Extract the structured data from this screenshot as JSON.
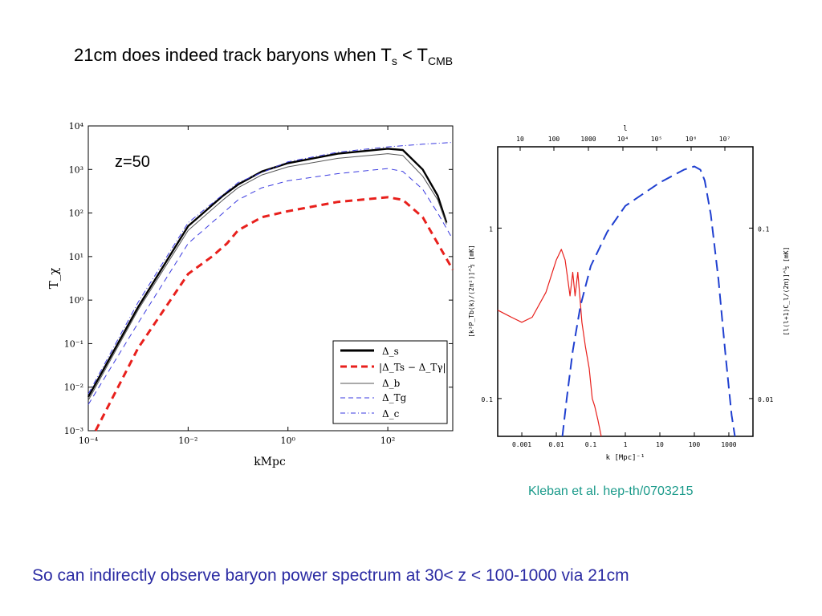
{
  "slide": {
    "title_main": "21cm does indeed track baryons when T",
    "title_sub1": "s",
    "title_mid": " < T",
    "title_sub2": "CMB",
    "caption": "So can indirectly observe baryon power spectrum at 30< z < 100-1000 via 21cm",
    "citation": "Kleban et al. hep-th/0703215"
  },
  "chart_data": [
    {
      "type": "line",
      "annotation": "z=50",
      "xlabel": "kMpc",
      "ylabel": "T_χ",
      "xscale": "log",
      "yscale": "log",
      "xlim": [
        0.0001,
        2000
      ],
      "ylim": [
        0.001,
        10000
      ],
      "x_ticks": [
        "10⁻⁴",
        "10⁻²",
        "10⁰",
        "10²"
      ],
      "y_ticks": [
        "10⁴",
        "10³",
        "10²",
        "10¹",
        "10⁰",
        "10⁻¹",
        "10⁻²",
        "10⁻³"
      ],
      "legend_position": "bottom-right",
      "series": [
        {
          "name": "Δ_s",
          "color": "#000000",
          "style": "solid-thick",
          "points": [
            [
              0.0001,
              0.006
            ],
            [
              0.001,
              0.7
            ],
            [
              0.01,
              50
            ],
            [
              0.02,
              100
            ],
            [
              0.03,
              150
            ],
            [
              0.05,
              250
            ],
            [
              0.1,
              450
            ],
            [
              0.3,
              900
            ],
            [
              1,
              1400
            ],
            [
              10,
              2300
            ],
            [
              100,
              3000
            ],
            [
              200,
              2800
            ],
            [
              500,
              1000
            ],
            [
              1000,
              250
            ],
            [
              1500,
              60
            ]
          ]
        },
        {
          "name": "|Δ_Ts − Δ_Tγ|",
          "color": "#e8201c",
          "style": "dashed-thick",
          "points": [
            [
              0.00014,
              0.0008
            ],
            [
              0.001,
              0.08
            ],
            [
              0.01,
              4
            ],
            [
              0.03,
              10
            ],
            [
              0.06,
              20
            ],
            [
              0.1,
              40
            ],
            [
              0.3,
              80
            ],
            [
              1,
              110
            ],
            [
              10,
              180
            ],
            [
              100,
              230
            ],
            [
              200,
              200
            ],
            [
              500,
              80
            ],
            [
              1000,
              20
            ],
            [
              2000,
              5
            ]
          ]
        },
        {
          "name": "Δ_b",
          "color": "#555555",
          "style": "solid-thin",
          "points": [
            [
              0.0001,
              0.005
            ],
            [
              0.001,
              0.6
            ],
            [
              0.01,
              40
            ],
            [
              0.02,
              80
            ],
            [
              0.03,
              120
            ],
            [
              0.05,
              200
            ],
            [
              0.1,
              380
            ],
            [
              0.3,
              750
            ],
            [
              1,
              1150
            ],
            [
              10,
              1800
            ],
            [
              100,
              2300
            ],
            [
              200,
              2100
            ],
            [
              500,
              700
            ],
            [
              1000,
              200
            ],
            [
              1500,
              55
            ]
          ]
        },
        {
          "name": "Δ_Tg",
          "color": "#3a3ae0",
          "style": "dashed-thin",
          "points": [
            [
              0.0001,
              0.004
            ],
            [
              0.001,
              0.3
            ],
            [
              0.01,
              20
            ],
            [
              0.03,
              60
            ],
            [
              0.06,
              120
            ],
            [
              0.1,
              200
            ],
            [
              0.3,
              380
            ],
            [
              1,
              550
            ],
            [
              10,
              800
            ],
            [
              100,
              1050
            ],
            [
              200,
              900
            ],
            [
              500,
              350
            ],
            [
              1000,
              100
            ],
            [
              2000,
              25
            ]
          ]
        },
        {
          "name": "Δ_c",
          "color": "#3a3ae0",
          "style": "dashdot",
          "points": [
            [
              0.0001,
              0.007
            ],
            [
              0.001,
              0.9
            ],
            [
              0.01,
              60
            ],
            [
              0.1,
              500
            ],
            [
              1,
              1500
            ],
            [
              10,
              2500
            ],
            [
              100,
              3300
            ],
            [
              500,
              3800
            ],
            [
              2000,
              4200
            ]
          ]
        }
      ]
    },
    {
      "type": "line",
      "xlabel": "k [Mpc]⁻¹",
      "ylabel_left": "[k³P_Tb(k)/(2π²)]^½ [mK]",
      "ylabel_right": "[l(l+1)C_l/(2π)]^½ [mK]",
      "top_axis_label": "l",
      "xscale": "log",
      "yscale": "log",
      "xlim": [
        0.0002,
        5000
      ],
      "ylim": [
        0.06,
        3
      ],
      "x_ticks": [
        "0.001",
        "0.01",
        "0.1",
        "1",
        "10",
        "100",
        "1000"
      ],
      "top_ticks": [
        "10",
        "100",
        "1000",
        "10⁴",
        "10⁵",
        "10⁶",
        "10⁷"
      ],
      "y_ticks_left": [
        "1",
        "0.1"
      ],
      "y_ticks_right": [
        "0.1",
        "0.01"
      ],
      "series": [
        {
          "name": "",
          "color": "#e8201c",
          "style": "solid",
          "points": [
            [
              0.0002,
              0.33
            ],
            [
              0.0005,
              0.3
            ],
            [
              0.001,
              0.28
            ],
            [
              0.002,
              0.3
            ],
            [
              0.005,
              0.42
            ],
            [
              0.01,
              0.65
            ],
            [
              0.014,
              0.75
            ],
            [
              0.018,
              0.65
            ],
            [
              0.025,
              0.4
            ],
            [
              0.03,
              0.55
            ],
            [
              0.035,
              0.4
            ],
            [
              0.042,
              0.55
            ],
            [
              0.048,
              0.4
            ],
            [
              0.055,
              0.28
            ],
            [
              0.07,
              0.2
            ],
            [
              0.09,
              0.15
            ],
            [
              0.11,
              0.1
            ],
            [
              0.13,
              0.09
            ],
            [
              0.16,
              0.075
            ],
            [
              0.2,
              0.06
            ]
          ]
        },
        {
          "name": "",
          "color": "#2040d0",
          "style": "long-dash",
          "points": [
            [
              0.015,
              0.06
            ],
            [
              0.02,
              0.1
            ],
            [
              0.03,
              0.19
            ],
            [
              0.05,
              0.35
            ],
            [
              0.1,
              0.6
            ],
            [
              0.3,
              0.95
            ],
            [
              1,
              1.35
            ],
            [
              10,
              1.85
            ],
            [
              50,
              2.2
            ],
            [
              100,
              2.3
            ],
            [
              150,
              2.2
            ],
            [
              200,
              1.9
            ],
            [
              300,
              1.2
            ],
            [
              500,
              0.5
            ],
            [
              800,
              0.18
            ],
            [
              1200,
              0.08
            ],
            [
              1500,
              0.06
            ]
          ]
        }
      ]
    }
  ],
  "colors": {
    "caption": "#2b2ba3",
    "citation": "#1a9a8a"
  }
}
